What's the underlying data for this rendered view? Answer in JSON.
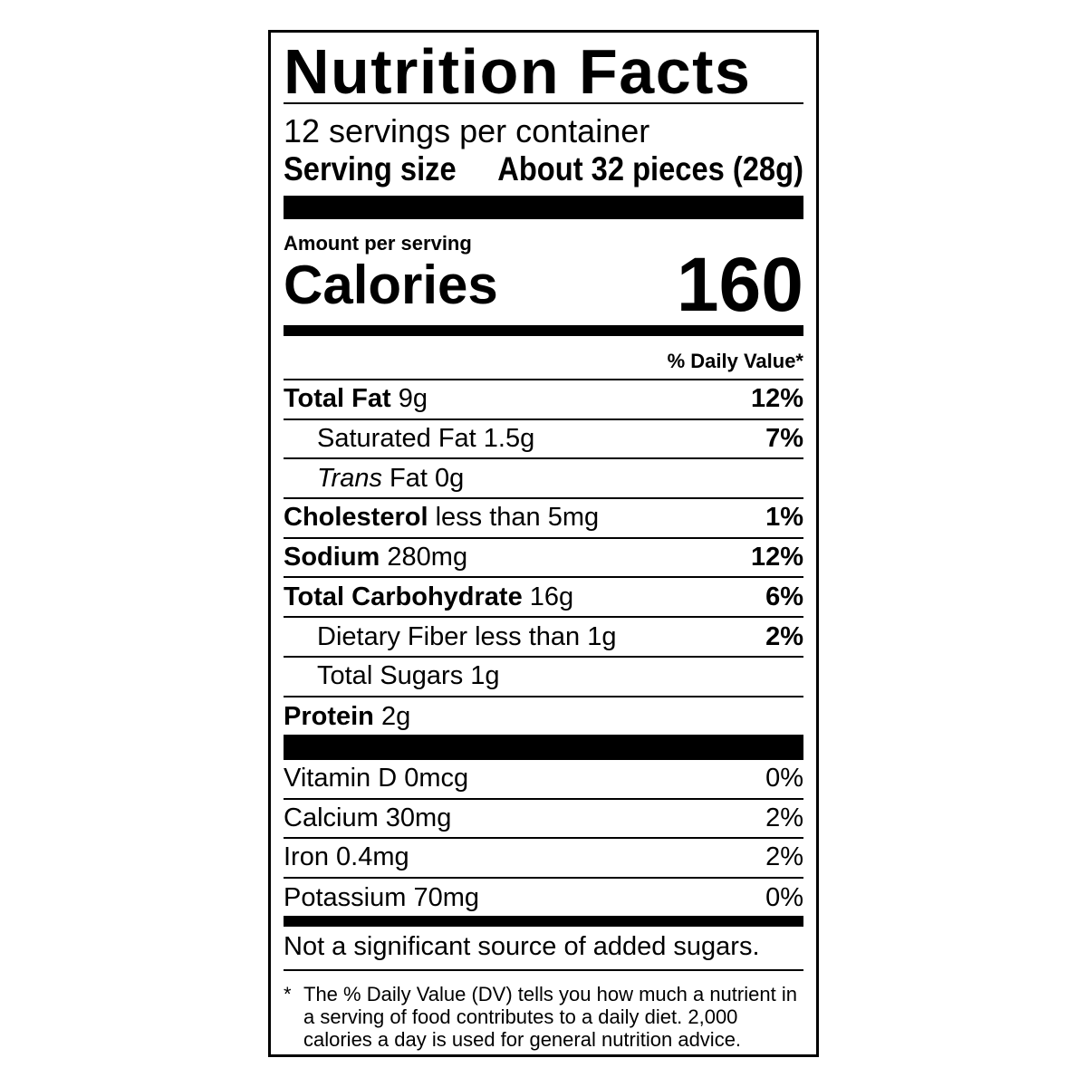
{
  "title": "Nutrition Facts",
  "servings_per_container": "12 servings per container",
  "serving_size": {
    "label": "Serving size",
    "value": "About 32 pieces (28g)"
  },
  "amount_per_serving": "Amount per serving",
  "calories": {
    "label": "Calories",
    "value": "160"
  },
  "daily_value_header": "% Daily Value*",
  "nutrients": [
    {
      "name": "Total Fat",
      "amount": "9g",
      "dv": "12%",
      "bold": true,
      "indent": false
    },
    {
      "name": "Saturated Fat",
      "amount": "1.5g",
      "dv": "7%",
      "bold": false,
      "indent": true
    },
    {
      "name": "Trans",
      "name_suffix": "Fat",
      "amount": "0g",
      "dv": "",
      "bold": false,
      "indent": true
    },
    {
      "name": "Cholesterol",
      "amount": "less than 5mg",
      "dv": "1%",
      "bold": true,
      "indent": false
    },
    {
      "name": "Sodium",
      "amount": "280mg",
      "dv": "12%",
      "bold": true,
      "indent": false
    },
    {
      "name": "Total Carbohydrate",
      "amount": "16g",
      "dv": "6%",
      "bold": true,
      "indent": false
    },
    {
      "name": "Dietary Fiber",
      "amount": "less than 1g",
      "dv": "2%",
      "bold": false,
      "indent": true
    },
    {
      "name": "Total Sugars",
      "amount": "1g",
      "dv": "",
      "bold": false,
      "indent": true
    },
    {
      "name": "Protein",
      "amount": "2g",
      "dv": "",
      "bold": true,
      "indent": false
    }
  ],
  "vitamins": [
    {
      "name": "Vitamin D 0mcg",
      "dv": "0%"
    },
    {
      "name": "Calcium 30mg",
      "dv": "2%"
    },
    {
      "name": "Iron 0.4mg",
      "dv": "2%"
    },
    {
      "name": "Potassium 70mg",
      "dv": "0%"
    }
  ],
  "added_sugars_note": "Not a significant source of added sugars.",
  "footnote": {
    "star": "*",
    "text": "The % Daily Value (DV) tells you how much a nutrient in a serving of food contributes to a daily diet. 2,000 calories a day is used for general nutrition advice."
  }
}
